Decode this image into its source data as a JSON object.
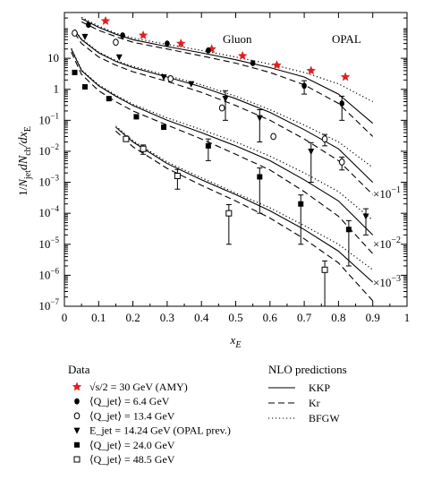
{
  "chart_data": {
    "type": "scatter",
    "ylabel": "1/N_jet dN_ch/dx_E",
    "xlabel": "x_E",
    "xlim": [
      0,
      1
    ],
    "ylim": [
      1e-07,
      300
    ],
    "yscale": "log",
    "grid": false,
    "x_ticks": [
      "0",
      "0.1",
      "0.2",
      "0.3",
      "0.4",
      "0.5",
      "0.6",
      "0.7",
      "0.8",
      "0.9",
      "1"
    ],
    "y_ticks": [
      "10",
      "1",
      "10^{-1}",
      "10^{-2}",
      "10^{-3}",
      "10^{-4}",
      "10^{-5}",
      "10^{-6}",
      "10^{-7}"
    ],
    "annotations": {
      "gluon": "Gluon",
      "opal": "OPAL",
      "scale_1": "×10",
      "scale_1_exp": "−1",
      "scale_2": "×10",
      "scale_2_exp": "−2",
      "scale_3": "×10",
      "scale_3_exp": "−3"
    },
    "legend": {
      "data_title": "Data",
      "nlo_title": "NLO predictions",
      "entries": [
        {
          "marker": "star",
          "color": "#e02020",
          "label": "√s/2 = 30 GeV (AMY)"
        },
        {
          "marker": "filled-circle",
          "color": "#000000",
          "label": "⟨Q_jet⟩ = 6.4 GeV"
        },
        {
          "marker": "open-circle",
          "color": "#000000",
          "label": "⟨Q_jet⟩ = 13.4 GeV"
        },
        {
          "marker": "filled-triangle",
          "color": "#000000",
          "label": "E_jet = 14.24 GeV (OPAL prev.)"
        },
        {
          "marker": "filled-square",
          "color": "#000000",
          "label": "⟨Q_jet⟩ = 24.0 GeV"
        },
        {
          "marker": "open-square",
          "color": "#000000",
          "label": "⟨Q_jet⟩ = 48.5 GeV"
        }
      ],
      "lines": [
        {
          "style": "solid",
          "label": "KKP"
        },
        {
          "style": "dashed",
          "label": "Kr"
        },
        {
          "style": "dotted",
          "label": "BFGW"
        }
      ]
    },
    "series": [
      {
        "label": "√s/2 = 30 GeV (AMY)",
        "marker": "star",
        "color": "#e02020",
        "x": [
          0.12,
          0.23,
          0.34,
          0.43,
          0.52,
          0.62,
          0.72,
          0.82
        ],
        "y": [
          160,
          55,
          30,
          20,
          12,
          6,
          4,
          2.5
        ]
      },
      {
        "label": "⟨Q_jet⟩ = 6.4 GeV",
        "marker": "filled-circle",
        "color": "#000000",
        "x": [
          0.07,
          0.17,
          0.3,
          0.42,
          0.55,
          0.7,
          0.81
        ],
        "y": [
          120,
          55,
          30,
          18,
          7,
          1.3,
          0.35
        ],
        "yerr": [
          0,
          0,
          0,
          0,
          0,
          0.6,
          0.25
        ]
      },
      {
        "label": "⟨Q_jet⟩ = 13.4 GeV",
        "marker": "open-circle",
        "color": "#000000",
        "x": [
          0.03,
          0.15,
          0.31,
          0.46,
          0.61,
          0.76,
          0.81
        ],
        "y": [
          65,
          33,
          2.2,
          0.25,
          0.03,
          0.025,
          0.0045
        ],
        "yerr": [
          0,
          0,
          0,
          0,
          0,
          0.01,
          0.002
        ]
      },
      {
        "label": "E_jet = 14.24 GeV (OPAL prev.)",
        "marker": "filled-triangle",
        "color": "#000000",
        "x": [
          0.06,
          0.16,
          0.29,
          0.37,
          0.47,
          0.57,
          0.72,
          0.88
        ],
        "y": [
          50,
          11,
          2.5,
          1.5,
          0.5,
          0.12,
          0.01,
          8e-05
        ],
        "yerr": [
          0,
          0,
          0,
          0,
          0.4,
          0.1,
          0.009,
          6e-05
        ]
      },
      {
        "label": "⟨Q_jet⟩ = 24.0 GeV",
        "marker": "filled-square",
        "color": "#000000",
        "x": [
          0.03,
          0.06,
          0.13,
          0.21,
          0.29,
          0.42,
          0.57,
          0.69,
          0.83
        ],
        "y": [
          3.5,
          1.2,
          0.5,
          0.13,
          0.06,
          0.015,
          0.0015,
          0.0002,
          3e-05
        ],
        "yerr": [
          0,
          0,
          0,
          0,
          0,
          0.01,
          0.0014,
          0.00019,
          2.8e-05
        ]
      },
      {
        "label": "⟨Q_jet⟩ = 48.5 GeV",
        "marker": "open-square",
        "color": "#000000",
        "x": [
          0.18,
          0.23,
          0.33,
          0.48,
          0.76
        ],
        "y": [
          0.025,
          0.012,
          0.0016,
          0.0001,
          1.5e-06
        ],
        "yerr": [
          0,
          0.004,
          0.001,
          9e-05,
          1.4e-06
        ]
      }
    ],
    "curves": [
      {
        "group": 1,
        "style": "solid",
        "x": [
          0.05,
          0.1,
          0.15,
          0.2,
          0.3,
          0.4,
          0.5,
          0.6,
          0.7,
          0.8,
          0.9
        ],
        "y": [
          190,
          100,
          60,
          40,
          24,
          15,
          9,
          5,
          2.5,
          0.7,
          0.08
        ]
      },
      {
        "group": 1,
        "style": "dashed",
        "x": [
          0.05,
          0.1,
          0.15,
          0.2,
          0.3,
          0.4,
          0.5,
          0.6,
          0.7,
          0.8,
          0.9
        ],
        "y": [
          150,
          80,
          50,
          33,
          20,
          12,
          7,
          3.5,
          1.4,
          0.35,
          0.03
        ]
      },
      {
        "group": 1,
        "style": "dotted",
        "x": [
          0.05,
          0.1,
          0.15,
          0.2,
          0.3,
          0.4,
          0.5,
          0.6,
          0.7,
          0.8,
          0.9
        ],
        "y": [
          210,
          110,
          65,
          45,
          28,
          18,
          11,
          6.5,
          3.5,
          1.5,
          0.4
        ]
      },
      {
        "group": 2,
        "style": "solid",
        "x": [
          0.03,
          0.05,
          0.1,
          0.15,
          0.2,
          0.3,
          0.4,
          0.5,
          0.6,
          0.7,
          0.8,
          0.9
        ],
        "y": [
          80,
          40,
          15,
          8,
          5,
          2.5,
          1.2,
          0.5,
          0.18,
          0.05,
          0.012,
          0.001
        ]
      },
      {
        "group": 2,
        "style": "dashed",
        "x": [
          0.03,
          0.05,
          0.1,
          0.15,
          0.2,
          0.3,
          0.4,
          0.5,
          0.6,
          0.7,
          0.8,
          0.9
        ],
        "y": [
          65,
          30,
          11,
          6,
          3.7,
          1.8,
          0.8,
          0.3,
          0.1,
          0.025,
          0.005,
          0.0004
        ]
      },
      {
        "group": 2,
        "style": "dotted",
        "x": [
          0.03,
          0.05,
          0.1,
          0.15,
          0.2,
          0.3,
          0.4,
          0.5,
          0.6,
          0.7,
          0.8,
          0.9
        ],
        "y": [
          85,
          42,
          16,
          8.5,
          5.5,
          2.8,
          1.4,
          0.6,
          0.22,
          0.07,
          0.02,
          0.003
        ]
      },
      {
        "group": 3,
        "style": "solid",
        "x": [
          0.02,
          0.05,
          0.1,
          0.15,
          0.2,
          0.3,
          0.4,
          0.5,
          0.6,
          0.7,
          0.8,
          0.9
        ],
        "y": [
          20,
          4,
          1.3,
          0.6,
          0.3,
          0.1,
          0.04,
          0.015,
          0.005,
          0.0012,
          0.00025,
          2e-05
        ]
      },
      {
        "group": 3,
        "style": "dashed",
        "x": [
          0.02,
          0.05,
          0.1,
          0.15,
          0.2,
          0.3,
          0.4,
          0.5,
          0.6,
          0.7,
          0.8,
          0.9
        ],
        "y": [
          16,
          3,
          0.9,
          0.4,
          0.2,
          0.07,
          0.025,
          0.008,
          0.0025,
          0.0005,
          8e-05,
          5e-06
        ]
      },
      {
        "group": 3,
        "style": "dotted",
        "x": [
          0.02,
          0.05,
          0.1,
          0.15,
          0.2,
          0.3,
          0.4,
          0.5,
          0.6,
          0.7,
          0.8,
          0.9
        ],
        "y": [
          21,
          4.2,
          1.4,
          0.65,
          0.33,
          0.12,
          0.05,
          0.02,
          0.007,
          0.002,
          0.0005,
          6e-05
        ]
      },
      {
        "group": 4,
        "style": "solid",
        "x": [
          0.15,
          0.2,
          0.3,
          0.4,
          0.5,
          0.6,
          0.7,
          0.8,
          0.9
        ],
        "y": [
          0.06,
          0.02,
          0.004,
          0.0012,
          0.0004,
          0.00012,
          3e-05,
          6e-06,
          6e-07
        ]
      },
      {
        "group": 4,
        "style": "dashed",
        "x": [
          0.15,
          0.2,
          0.3,
          0.4,
          0.5,
          0.6,
          0.7,
          0.8,
          0.9
        ],
        "y": [
          0.045,
          0.014,
          0.0028,
          0.0008,
          0.00025,
          7e-05,
          1.5e-05,
          2.5e-06,
          1.5e-07
        ]
      },
      {
        "group": 4,
        "style": "dotted",
        "x": [
          0.15,
          0.2,
          0.3,
          0.4,
          0.5,
          0.6,
          0.7,
          0.8,
          0.9
        ],
        "y": [
          0.065,
          0.022,
          0.0045,
          0.0014,
          0.00045,
          0.00015,
          4e-05,
          1e-05,
          1.5e-06
        ]
      }
    ]
  }
}
